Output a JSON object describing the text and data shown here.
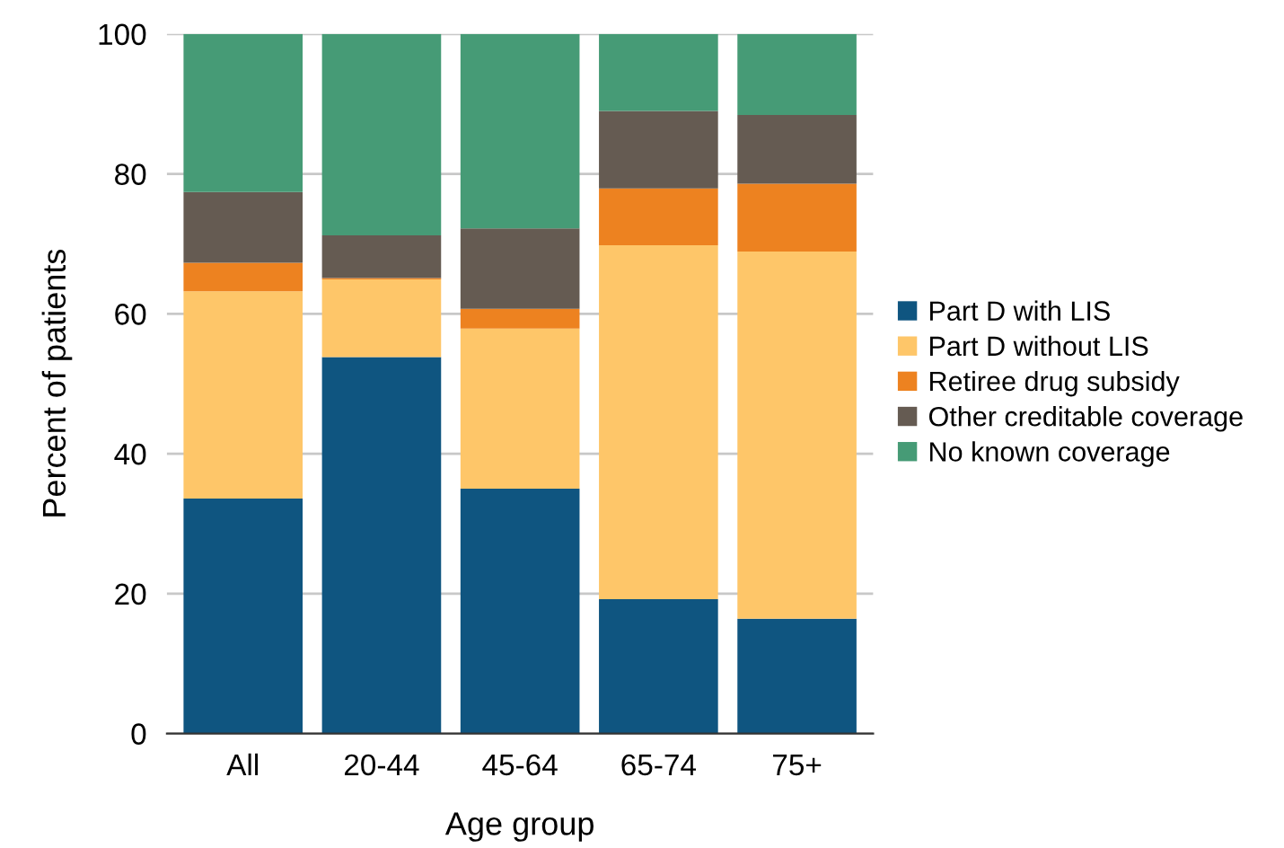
{
  "chart_data": {
    "type": "bar",
    "stacked": true,
    "xlabel": "Age group",
    "ylabel": "Percent of patients",
    "categories": [
      "All",
      "20-44",
      "45-64",
      "65-74",
      "75+"
    ],
    "series": [
      {
        "name": "Part D with LIS",
        "color": "#0f5580",
        "values": [
          33.6,
          53.8,
          35.0,
          19.2,
          16.4
        ]
      },
      {
        "name": "Part D without LIS",
        "color": "#fec669",
        "values": [
          29.6,
          11.1,
          22.9,
          50.6,
          52.5
        ]
      },
      {
        "name": "Retiree drug subsidy",
        "color": "#ed8220",
        "values": [
          4.1,
          0.2,
          2.8,
          8.1,
          9.7
        ]
      },
      {
        "name": "Other creditable coverage",
        "color": "#655b52",
        "values": [
          10.1,
          6.1,
          11.5,
          11.1,
          9.8
        ]
      },
      {
        "name": "No known coverage",
        "color": "#469b76",
        "values": [
          22.6,
          28.8,
          27.8,
          11.0,
          11.6
        ]
      }
    ],
    "ylim": [
      0,
      100
    ],
    "yticks": [
      0,
      20,
      40,
      60,
      80,
      100
    ],
    "grid": "y",
    "legend": "right"
  }
}
